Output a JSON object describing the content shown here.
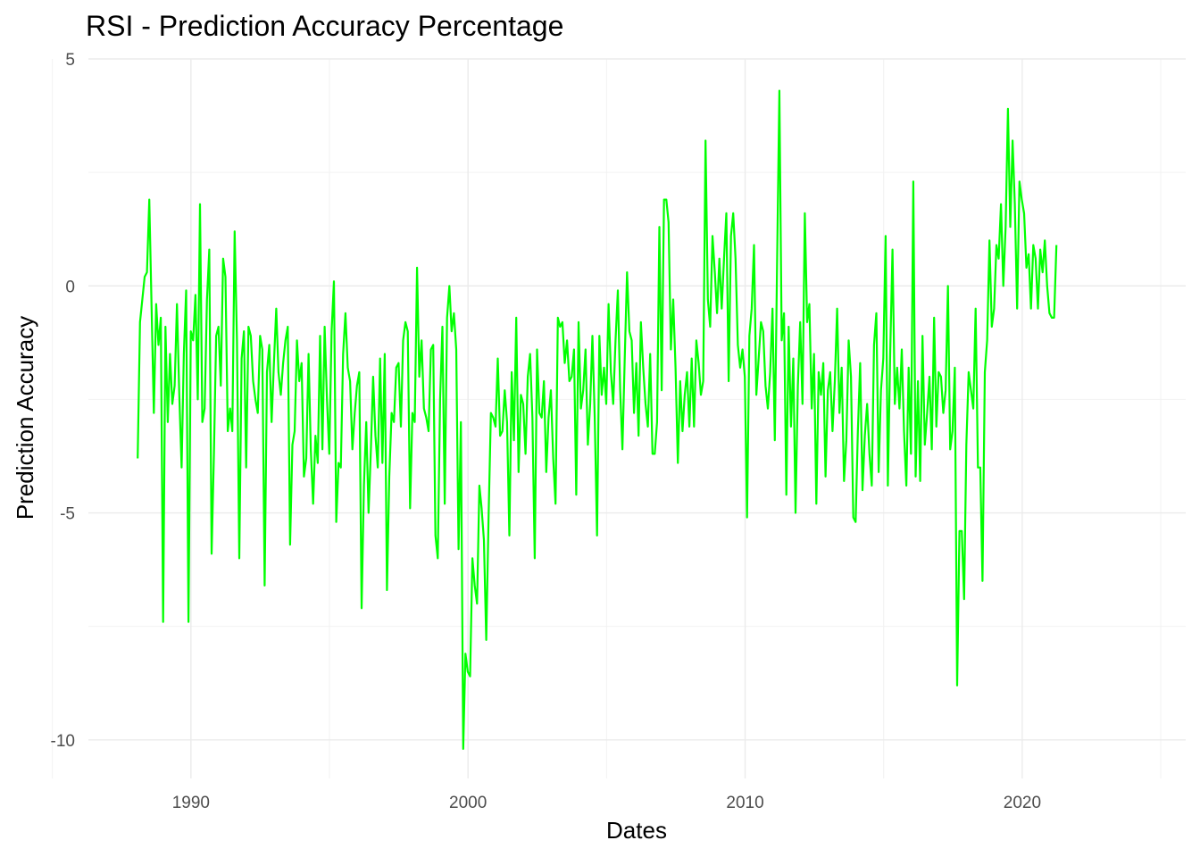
{
  "chart_data": {
    "type": "line",
    "title": "RSI - Prediction Accuracy Percentage",
    "xlabel": "Dates",
    "ylabel": "Prediction Accuracy",
    "xlim": [
      1986.3,
      2025.9
    ],
    "ylim": [
      -10.85,
      5.0
    ],
    "x_ticks": [
      1990,
      2000,
      2010,
      2020
    ],
    "x_minor_ticks": [
      1985,
      1995,
      2005,
      2015,
      2025
    ],
    "y_ticks": [
      -10,
      -5,
      0,
      5
    ],
    "y_minor_ticks": [
      -7.5,
      -2.5,
      2.5
    ],
    "x_tick_labels": [
      "1990",
      "2000",
      "2010",
      "2020"
    ],
    "y_tick_labels": [
      "-10",
      "-5",
      "0",
      "5"
    ],
    "grid": true,
    "line_color": "#00ff00",
    "series": [
      {
        "x_start": 1988.08,
        "x_step": 0.0833,
        "values": [
          -3.8,
          -0.8,
          -0.3,
          0.2,
          0.3,
          1.9,
          -0.5,
          -2.8,
          -0.4,
          -1.3,
          -0.7,
          -7.4,
          -0.9,
          -3.0,
          -1.5,
          -2.6,
          -2.2,
          -0.4,
          -2.4,
          -4.0,
          -1.5,
          -0.1,
          -7.4,
          -1.0,
          -1.2,
          -0.2,
          -2.5,
          1.8,
          -3.0,
          -2.7,
          -0.3,
          0.8,
          -5.9,
          -3.7,
          -1.1,
          -0.9,
          -2.2,
          0.6,
          0.2,
          -3.2,
          -2.7,
          -3.2,
          1.2,
          -1.2,
          -6.0,
          -1.6,
          -1.0,
          -4.0,
          -0.9,
          -1.1,
          -2.1,
          -2.5,
          -2.8,
          -1.1,
          -1.4,
          -6.6,
          -1.9,
          -1.3,
          -3.0,
          -1.7,
          -0.5,
          -1.9,
          -2.4,
          -1.7,
          -1.2,
          -0.9,
          -5.7,
          -3.5,
          -3.2,
          -1.2,
          -2.1,
          -1.7,
          -4.2,
          -3.8,
          -1.5,
          -3.6,
          -4.8,
          -3.3,
          -3.9,
          -1.1,
          -3.6,
          -0.9,
          -2.5,
          -3.7,
          -1.0,
          0.1,
          -5.2,
          -3.9,
          -4.0,
          -1.5,
          -0.6,
          -1.8,
          -2.1,
          -3.6,
          -2.8,
          -2.2,
          -1.9,
          -7.1,
          -4.4,
          -3.0,
          -5.0,
          -3.6,
          -2.0,
          -3.3,
          -4.0,
          -1.6,
          -3.9,
          -1.5,
          -6.7,
          -4.2,
          -2.8,
          -3.0,
          -1.8,
          -1.7,
          -3.1,
          -1.2,
          -0.8,
          -1.0,
          -4.9,
          -2.8,
          -3.0,
          0.4,
          -2.0,
          -1.2,
          -2.7,
          -2.9,
          -3.2,
          -1.4,
          -1.3,
          -5.5,
          -6.0,
          -2.5,
          -0.9,
          -4.8,
          -0.7,
          0.0,
          -1.0,
          -0.6,
          -1.4,
          -5.8,
          -3.0,
          -10.2,
          -8.1,
          -8.5,
          -8.6,
          -6.0,
          -6.6,
          -7.0,
          -4.4,
          -4.9,
          -5.6,
          -7.8,
          -5.1,
          -2.8,
          -2.9,
          -3.1,
          -1.6,
          -3.3,
          -3.2,
          -2.3,
          -3.0,
          -5.5,
          -1.9,
          -3.4,
          -0.7,
          -4.1,
          -2.4,
          -2.6,
          -3.7,
          -2.0,
          -1.5,
          -2.9,
          -6.0,
          -1.4,
          -2.8,
          -2.9,
          -2.1,
          -4.1,
          -2.9,
          -2.3,
          -3.8,
          -4.8,
          -0.7,
          -0.9,
          -0.8,
          -1.7,
          -1.2,
          -2.1,
          -2.0,
          -1.4,
          -4.6,
          -0.8,
          -2.7,
          -2.3,
          -1.4,
          -3.5,
          -2.6,
          -1.1,
          -2.9,
          -5.5,
          -1.1,
          -2.4,
          -1.8,
          -2.6,
          -0.4,
          -1.9,
          -2.6,
          -1.2,
          -0.1,
          -2.3,
          -3.6,
          -1.6,
          0.3,
          -1.0,
          -1.2,
          -2.8,
          -1.7,
          -3.3,
          -0.8,
          -1.8,
          -2.6,
          -3.1,
          -1.5,
          -3.7,
          -3.7,
          -3.0,
          1.3,
          -2.3,
          1.9,
          1.9,
          1.4,
          -1.4,
          -0.3,
          -1.8,
          -3.9,
          -2.1,
          -3.2,
          -2.4,
          -1.9,
          -3.1,
          -1.6,
          -3.1,
          -1.2,
          -1.7,
          -2.4,
          -2.1,
          3.2,
          -0.3,
          -0.9,
          1.1,
          0.3,
          -0.6,
          0.6,
          -0.5,
          0.6,
          1.6,
          -2.1,
          1.1,
          1.6,
          0.6,
          -1.3,
          -1.8,
          -1.4,
          -2.0,
          -5.1,
          -1.1,
          -0.5,
          0.9,
          -2.4,
          -1.6,
          -0.8,
          -1.0,
          -2.2,
          -2.7,
          -1.9,
          -0.5,
          -3.4,
          0.6,
          4.3,
          -1.2,
          -0.6,
          -4.6,
          -0.9,
          -3.1,
          -1.6,
          -5.0,
          -2.2,
          -0.8,
          -2.6,
          1.6,
          -0.8,
          -0.4,
          -2.7,
          -1.5,
          -4.8,
          -1.9,
          -2.4,
          -1.7,
          -4.2,
          -2.3,
          -1.9,
          -3.2,
          -2.1,
          -0.5,
          -2.8,
          -1.8,
          -4.3,
          -3.4,
          -1.2,
          -2.0,
          -5.1,
          -5.2,
          -3.2,
          -1.7,
          -4.5,
          -3.3,
          -2.6,
          -3.7,
          -4.4,
          -1.3,
          -0.6,
          -4.1,
          -2.3,
          -1.6,
          1.1,
          -4.4,
          -1.5,
          0.8,
          -2.6,
          -1.8,
          -2.7,
          -1.4,
          -3.2,
          -4.4,
          -1.8,
          -3.7,
          2.3,
          -4.2,
          -2.1,
          -4.3,
          -1.1,
          -3.5,
          -2.8,
          -2.0,
          -3.6,
          -0.7,
          -3.1,
          -1.9,
          -2.0,
          -2.8,
          -2.3,
          0.0,
          -3.6,
          -3.2,
          -1.8,
          -8.8,
          -5.4,
          -5.4,
          -6.9,
          -3.5,
          -1.9,
          -2.3,
          -2.7,
          -0.5,
          -4.0,
          -4.0,
          -6.5,
          -1.9,
          -1.2,
          1.0,
          -0.9,
          -0.5,
          0.9,
          0.6,
          1.8,
          0.0,
          1.3,
          3.9,
          1.3,
          3.2,
          1.8,
          -0.5,
          2.3,
          1.9,
          1.6,
          0.4,
          0.7,
          -0.5,
          0.9,
          0.6,
          -0.5,
          0.8,
          0.3,
          1.0,
          0.0,
          -0.6,
          -0.7,
          -0.7,
          0.9
        ]
      }
    ]
  }
}
